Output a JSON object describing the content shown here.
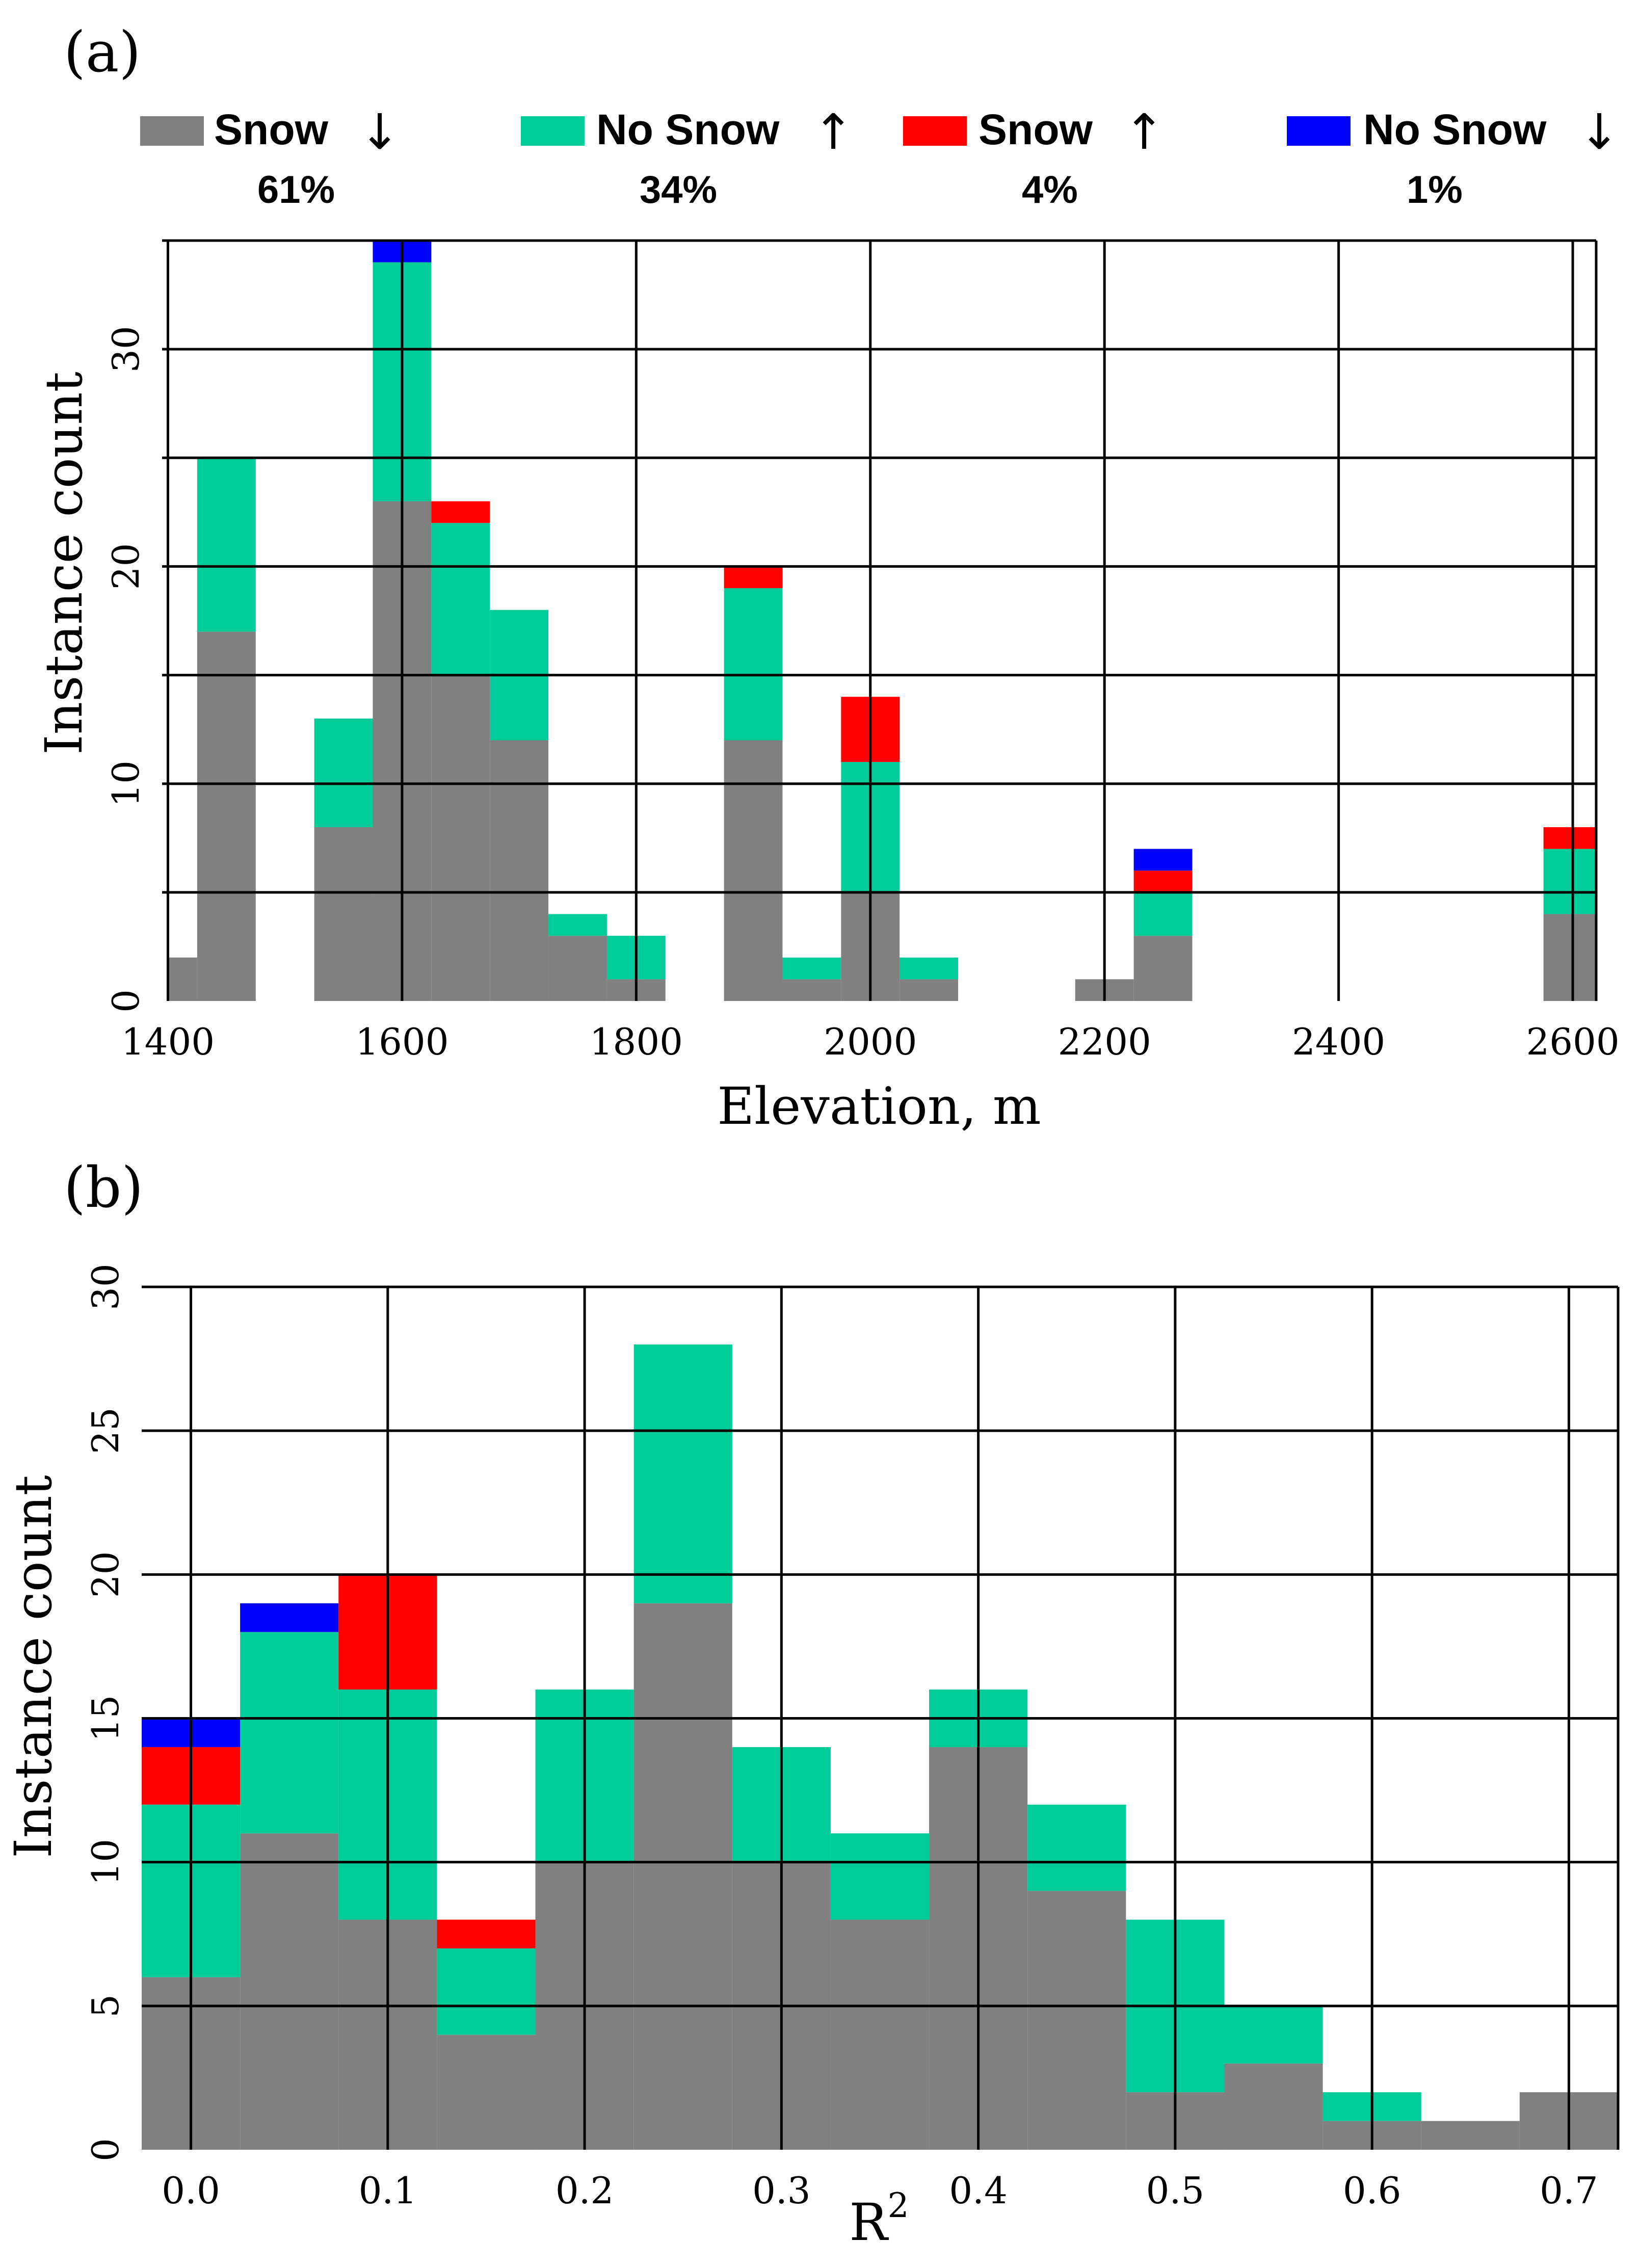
{
  "colors": {
    "snow_down": "#808080",
    "nosnow_up": "#00CC99",
    "snow_up": "#FF0000",
    "nosnow_down": "#0000FF"
  },
  "legend": {
    "items": [
      {
        "key": "snow_down",
        "label": "Snow",
        "arrow": "↓",
        "percent": "61%"
      },
      {
        "key": "nosnow_up",
        "label": "No Snow",
        "arrow": "↑",
        "percent": "34%"
      },
      {
        "key": "snow_up",
        "label": "Snow",
        "arrow": "↑",
        "percent": "4%"
      },
      {
        "key": "nosnow_down",
        "label": "No Snow",
        "arrow": "↓",
        "percent": "1%"
      }
    ]
  },
  "chart_data": [
    {
      "panel": "(a)",
      "type": "bar",
      "stacked": true,
      "xlabel": "Elevation, m",
      "ylabel": "Instance count",
      "xlim": [
        1395,
        2620
      ],
      "ylim": [
        0,
        35
      ],
      "xticks": [
        1400,
        1600,
        1800,
        2000,
        2200,
        2400,
        2600
      ],
      "yticks": [
        0,
        10,
        20,
        30
      ],
      "grid_y": [
        5,
        10,
        15,
        20,
        25,
        30,
        35
      ],
      "bin_width": 50,
      "bin_starts": [
        1400,
        1425,
        1525,
        1575,
        1625,
        1675,
        1725,
        1775,
        1875,
        1925,
        1975,
        2025,
        2175,
        2225,
        2575
      ],
      "bin_ends": [
        1425,
        1475,
        1575,
        1625,
        1675,
        1725,
        1775,
        1825,
        1925,
        1975,
        2025,
        2075,
        2225,
        2275,
        2620
      ],
      "series": [
        {
          "name": "Snow ↓",
          "key": "snow_down",
          "values": [
            2,
            17,
            8,
            23,
            15,
            12,
            3,
            1,
            12,
            1,
            5,
            1,
            1,
            3,
            4
          ]
        },
        {
          "name": "No Snow ↑",
          "key": "nosnow_up",
          "values": [
            0,
            8,
            5,
            11,
            7,
            6,
            1,
            2,
            7,
            1,
            6,
            1,
            0,
            2,
            3
          ]
        },
        {
          "name": "Snow ↑",
          "key": "snow_up",
          "values": [
            0,
            0,
            0,
            0,
            1,
            0,
            0,
            0,
            1,
            0,
            3,
            0,
            0,
            1,
            1
          ]
        },
        {
          "name": "No Snow ↓",
          "key": "nosnow_down",
          "values": [
            0,
            0,
            0,
            1,
            0,
            0,
            0,
            0,
            0,
            0,
            0,
            0,
            0,
            1,
            0
          ]
        }
      ]
    },
    {
      "panel": "(b)",
      "type": "bar",
      "stacked": true,
      "xlabel": "R",
      "xlabel_sup": "2",
      "ylabel": "Instance count",
      "xlim": [
        -0.025,
        0.725
      ],
      "ylim": [
        0,
        30
      ],
      "xticks": [
        "0.0",
        "0.1",
        "0.2",
        "0.3",
        "0.4",
        "0.5",
        "0.6",
        "0.7"
      ],
      "xtick_values": [
        0.0,
        0.1,
        0.2,
        0.3,
        0.4,
        0.5,
        0.6,
        0.7
      ],
      "yticks": [
        0,
        5,
        10,
        15,
        20,
        25,
        30
      ],
      "bin_width": 0.05,
      "bin_starts": [
        -0.025,
        0.025,
        0.075,
        0.125,
        0.175,
        0.225,
        0.275,
        0.325,
        0.375,
        0.425,
        0.475,
        0.525,
        0.575,
        0.625,
        0.675
      ],
      "series": [
        {
          "name": "Snow ↓",
          "key": "snow_down",
          "values": [
            6,
            11,
            8,
            4,
            10,
            19,
            10,
            8,
            14,
            9,
            2,
            3,
            1,
            1,
            2
          ]
        },
        {
          "name": "No Snow ↑",
          "key": "nosnow_up",
          "values": [
            6,
            7,
            8,
            3,
            6,
            9,
            4,
            3,
            2,
            3,
            6,
            2,
            1,
            0,
            0
          ]
        },
        {
          "name": "Snow ↑",
          "key": "snow_up",
          "values": [
            2,
            0,
            4,
            1,
            0,
            0,
            0,
            0,
            0,
            0,
            0,
            0,
            0,
            0,
            0
          ]
        },
        {
          "name": "No Snow ↓",
          "key": "nosnow_down",
          "values": [
            1,
            1,
            0,
            0,
            0,
            0,
            0,
            0,
            0,
            0,
            0,
            0,
            0,
            0,
            0
          ]
        }
      ]
    }
  ]
}
